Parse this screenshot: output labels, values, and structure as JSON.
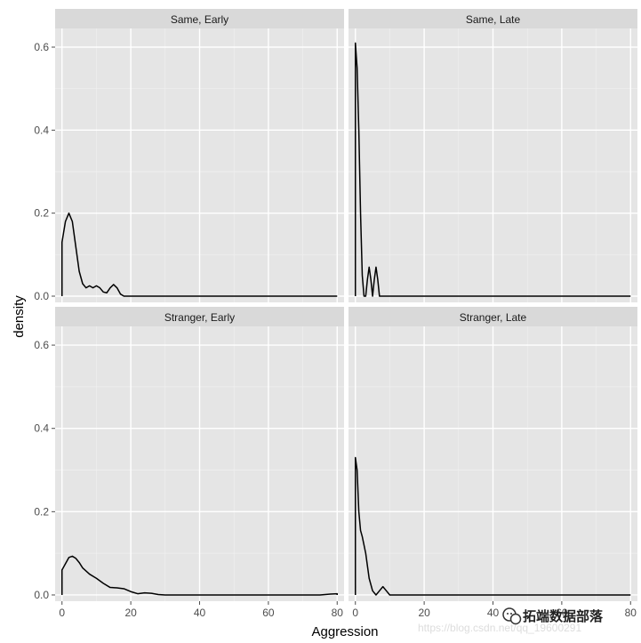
{
  "chart_data": {
    "type": "line",
    "xlabel": "Aggression",
    "ylabel": "density",
    "xlim": [
      -2,
      82
    ],
    "ylim": [
      -0.015,
      0.645
    ],
    "x_ticks": [
      0,
      20,
      40,
      60,
      80
    ],
    "y_ticks": [
      0.0,
      0.2,
      0.4,
      0.6
    ],
    "x_tick_labels": [
      "0",
      "20",
      "40",
      "60",
      "80"
    ],
    "y_tick_labels": [
      "0.0",
      "0.2",
      "0.4",
      "0.6"
    ],
    "grid": true,
    "layout": "2x2 facets",
    "panels": [
      {
        "strip": "Same, Early",
        "points": [
          [
            0,
            0
          ],
          [
            0,
            0.13
          ],
          [
            1,
            0.18
          ],
          [
            2,
            0.2
          ],
          [
            3,
            0.18
          ],
          [
            4,
            0.12
          ],
          [
            5,
            0.06
          ],
          [
            6,
            0.03
          ],
          [
            7,
            0.02
          ],
          [
            8,
            0.025
          ],
          [
            9,
            0.02
          ],
          [
            10,
            0.025
          ],
          [
            11,
            0.02
          ],
          [
            12,
            0.01
          ],
          [
            13,
            0.008
          ],
          [
            14,
            0.02
          ],
          [
            15,
            0.028
          ],
          [
            16,
            0.02
          ],
          [
            17,
            0.005
          ],
          [
            18,
            0.0
          ],
          [
            25,
            0.0
          ],
          [
            40,
            0.0
          ],
          [
            60,
            0.0
          ],
          [
            80,
            0.0
          ],
          [
            80,
            0
          ]
        ]
      },
      {
        "strip": "Same, Late",
        "points": [
          [
            0,
            0
          ],
          [
            0,
            0.61
          ],
          [
            0.5,
            0.55
          ],
          [
            1,
            0.4
          ],
          [
            1.5,
            0.2
          ],
          [
            2,
            0.05
          ],
          [
            2.5,
            0.0
          ],
          [
            3,
            0.0
          ],
          [
            3.5,
            0.04
          ],
          [
            4,
            0.07
          ],
          [
            4.5,
            0.04
          ],
          [
            5,
            0.0
          ],
          [
            5.5,
            0.04
          ],
          [
            6,
            0.07
          ],
          [
            6.5,
            0.04
          ],
          [
            7,
            0.0
          ],
          [
            20,
            0.0
          ],
          [
            40,
            0.0
          ],
          [
            60,
            0.0
          ],
          [
            80,
            0.0
          ],
          [
            80,
            0
          ]
        ]
      },
      {
        "strip": "Stranger, Early",
        "points": [
          [
            0,
            0
          ],
          [
            0,
            0.06
          ],
          [
            1,
            0.075
          ],
          [
            2,
            0.09
          ],
          [
            3,
            0.093
          ],
          [
            4,
            0.088
          ],
          [
            5,
            0.078
          ],
          [
            6,
            0.065
          ],
          [
            8,
            0.05
          ],
          [
            10,
            0.04
          ],
          [
            12,
            0.028
          ],
          [
            14,
            0.018
          ],
          [
            16,
            0.017
          ],
          [
            18,
            0.015
          ],
          [
            20,
            0.008
          ],
          [
            22,
            0.003
          ],
          [
            24,
            0.005
          ],
          [
            26,
            0.004
          ],
          [
            28,
            0.001
          ],
          [
            30,
            0.0
          ],
          [
            60,
            0.0
          ],
          [
            75,
            0.0
          ],
          [
            78,
            0.002
          ],
          [
            80,
            0.003
          ],
          [
            80,
            0
          ]
        ]
      },
      {
        "strip": "Stranger, Late",
        "points": [
          [
            0,
            0
          ],
          [
            0,
            0.33
          ],
          [
            0.5,
            0.3
          ],
          [
            1,
            0.2
          ],
          [
            1.5,
            0.155
          ],
          [
            2,
            0.14
          ],
          [
            3,
            0.1
          ],
          [
            4,
            0.04
          ],
          [
            5,
            0.01
          ],
          [
            6,
            0.0
          ],
          [
            7,
            0.01
          ],
          [
            8,
            0.02
          ],
          [
            9,
            0.01
          ],
          [
            10,
            0.0
          ],
          [
            20,
            0.0
          ],
          [
            40,
            0.0
          ],
          [
            60,
            0.0
          ],
          [
            80,
            0.0
          ],
          [
            80,
            0
          ]
        ]
      }
    ]
  },
  "watermark": {
    "url": "https://blog.csdn.net/qq_19600291",
    "brand": "拓端数据部落",
    "brand_icon": "wechat-icon"
  }
}
